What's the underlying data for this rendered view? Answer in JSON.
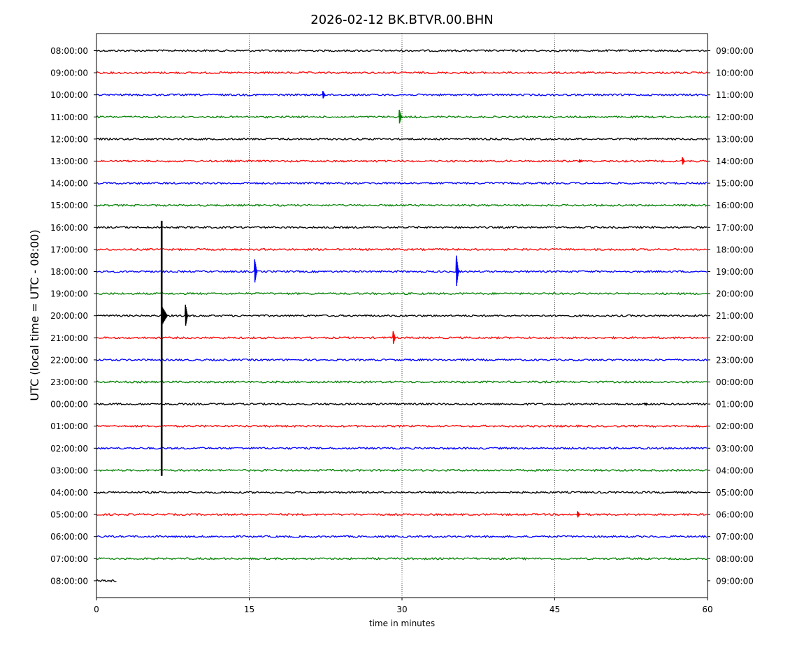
{
  "chart_data": {
    "type": "line",
    "title": "2026-02-12 BK.BTVR.00.BHN",
    "xlabel": "time in minutes",
    "ylabel": "UTC (local time = UTC - 08:00)",
    "xlim": [
      0,
      60
    ],
    "x_ticks": [
      0,
      15,
      30,
      45,
      60
    ],
    "grid": "vertical dotted lines at 15, 30, 45",
    "trace_colors": [
      "#000000",
      "#ff0000",
      "#0000ff",
      "#008000"
    ],
    "rows": [
      {
        "left": "08:00:00",
        "right": "09:00:00",
        "end_minute": 60,
        "events": []
      },
      {
        "left": "09:00:00",
        "right": "10:00:00",
        "end_minute": 60,
        "events": []
      },
      {
        "left": "10:00:00",
        "right": "11:00:00",
        "end_minute": 60,
        "events": [
          {
            "minute": 22.3,
            "amplitude": 0.35
          }
        ]
      },
      {
        "left": "11:00:00",
        "right": "12:00:00",
        "end_minute": 60,
        "events": [
          {
            "minute": 29.8,
            "amplitude": 0.65
          }
        ]
      },
      {
        "left": "12:00:00",
        "right": "13:00:00",
        "end_minute": 60,
        "events": []
      },
      {
        "left": "13:00:00",
        "right": "14:00:00",
        "end_minute": 60,
        "events": [
          {
            "minute": 47.5,
            "amplitude": 0.15
          },
          {
            "minute": 57.6,
            "amplitude": 0.35
          }
        ]
      },
      {
        "left": "14:00:00",
        "right": "15:00:00",
        "end_minute": 60,
        "events": []
      },
      {
        "left": "15:00:00",
        "right": "16:00:00",
        "end_minute": 60,
        "events": []
      },
      {
        "left": "16:00:00",
        "right": "17:00:00",
        "end_minute": 60,
        "events": []
      },
      {
        "left": "17:00:00",
        "right": "18:00:00",
        "end_minute": 60,
        "events": []
      },
      {
        "left": "18:00:00",
        "right": "19:00:00",
        "end_minute": 60,
        "events": [
          {
            "minute": 15.6,
            "amplitude": 1.1
          },
          {
            "minute": 35.4,
            "amplitude": 1.45
          }
        ]
      },
      {
        "left": "19:00:00",
        "right": "20:00:00",
        "end_minute": 60,
        "events": []
      },
      {
        "left": "20:00:00",
        "right": "21:00:00",
        "end_minute": 60,
        "events": [
          {
            "minute": 8.8,
            "amplitude": 1.0
          }
        ]
      },
      {
        "left": "21:00:00",
        "right": "22:00:00",
        "end_minute": 60,
        "events": [
          {
            "minute": 29.2,
            "amplitude": 0.6
          }
        ]
      },
      {
        "left": "22:00:00",
        "right": "23:00:00",
        "end_minute": 60,
        "events": []
      },
      {
        "left": "23:00:00",
        "right": "00:00:00",
        "end_minute": 60,
        "events": []
      },
      {
        "left": "00:00:00",
        "right": "01:00:00",
        "end_minute": 60,
        "events": [
          {
            "minute": 53.9,
            "amplitude": 0.12
          }
        ]
      },
      {
        "left": "01:00:00",
        "right": "02:00:00",
        "end_minute": 60,
        "events": []
      },
      {
        "left": "02:00:00",
        "right": "03:00:00",
        "end_minute": 60,
        "events": []
      },
      {
        "left": "03:00:00",
        "right": "04:00:00",
        "end_minute": 60,
        "events": []
      },
      {
        "left": "04:00:00",
        "right": "05:00:00",
        "end_minute": 60,
        "events": []
      },
      {
        "left": "05:00:00",
        "right": "06:00:00",
        "end_minute": 60,
        "events": [
          {
            "minute": 47.3,
            "amplitude": 0.3
          }
        ]
      },
      {
        "left": "06:00:00",
        "right": "07:00:00",
        "end_minute": 60,
        "events": []
      },
      {
        "left": "07:00:00",
        "right": "08:00:00",
        "end_minute": 60,
        "events": []
      },
      {
        "left": "08:00:00",
        "right": "09:00:00",
        "end_minute": 2,
        "events": []
      }
    ],
    "major_event": {
      "row_index": 12,
      "minute": 6.4,
      "top_row": 7.7,
      "bottom_row": 19.25
    }
  }
}
